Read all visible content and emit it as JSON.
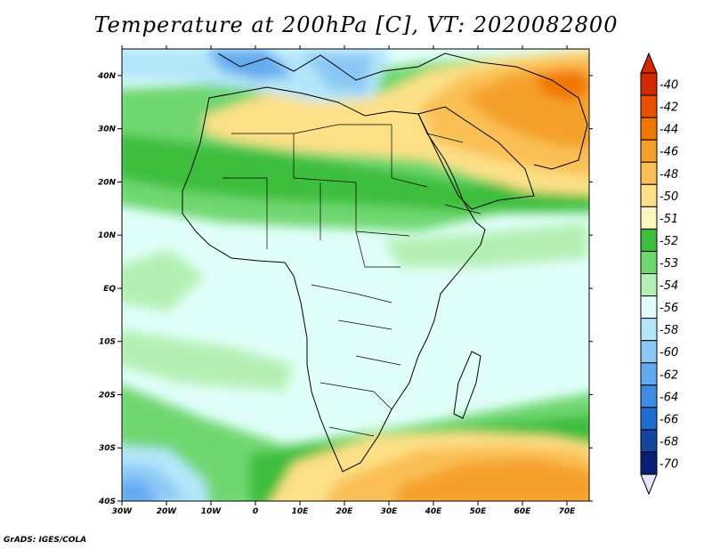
{
  "title": "Temperature at 200hPa [C], VT: 2020082800",
  "credit": "GrADS: IGES/COLA",
  "map": {
    "lon_range": [
      -30,
      75
    ],
    "lat_range": [
      -40,
      45
    ],
    "lon_ticks": [
      {
        "value": -30,
        "label": "30W"
      },
      {
        "value": -20,
        "label": "20W"
      },
      {
        "value": -10,
        "label": "10W"
      },
      {
        "value": 0,
        "label": "0"
      },
      {
        "value": 10,
        "label": "10E"
      },
      {
        "value": 20,
        "label": "20E"
      },
      {
        "value": 30,
        "label": "30E"
      },
      {
        "value": 40,
        "label": "40E"
      },
      {
        "value": 50,
        "label": "50E"
      },
      {
        "value": 60,
        "label": "60E"
      },
      {
        "value": 70,
        "label": "70E"
      }
    ],
    "lat_ticks": [
      {
        "value": 40,
        "label": "40N"
      },
      {
        "value": 30,
        "label": "30N"
      },
      {
        "value": 20,
        "label": "20N"
      },
      {
        "value": 10,
        "label": "10N"
      },
      {
        "value": 0,
        "label": "EQ"
      },
      {
        "value": -10,
        "label": "10S"
      },
      {
        "value": -20,
        "label": "20S"
      },
      {
        "value": -30,
        "label": "30S"
      },
      {
        "value": -40,
        "label": "40S"
      }
    ]
  },
  "colorbar": {
    "levels": [
      {
        "label": "-40",
        "color": "#d42800"
      },
      {
        "label": "-42",
        "color": "#e65000"
      },
      {
        "label": "-44",
        "color": "#f07800"
      },
      {
        "label": "-46",
        "color": "#f5a02a"
      },
      {
        "label": "-48",
        "color": "#fac055"
      },
      {
        "label": "-50",
        "color": "#fde088"
      },
      {
        "label": "-51",
        "color": "#fff5c0"
      },
      {
        "label": "-52",
        "color": "#3cbe3c"
      },
      {
        "label": "-53",
        "color": "#70d770"
      },
      {
        "label": "-54",
        "color": "#b4f0b4"
      },
      {
        "label": "-56",
        "color": "#e0fffa"
      },
      {
        "label": "-58",
        "color": "#b4e6fa"
      },
      {
        "label": "-60",
        "color": "#8cc8f5"
      },
      {
        "label": "-62",
        "color": "#64aaf0"
      },
      {
        "label": "-64",
        "color": "#3c8ce6"
      },
      {
        "label": "-66",
        "color": "#1e6ed2"
      },
      {
        "label": "-68",
        "color": "#1446a0"
      },
      {
        "label": "-70",
        "color": "#0a1e78"
      }
    ],
    "below_color": "#e6e6fa"
  }
}
